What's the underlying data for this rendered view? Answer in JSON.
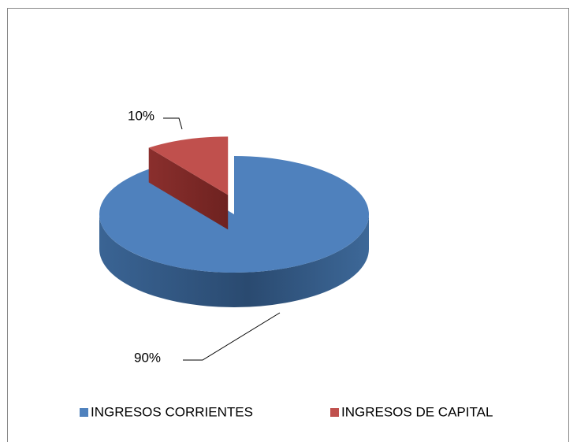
{
  "chart_data": {
    "type": "pie3d",
    "categories": [
      "INGRESOS CORRIENTES",
      "INGRESOS DE CAPITAL"
    ],
    "values": [
      90,
      10
    ],
    "value_labels": [
      "90%",
      "10%"
    ],
    "colors": [
      "#4f81bd",
      "#c0504d"
    ],
    "legend": "bottom"
  }
}
